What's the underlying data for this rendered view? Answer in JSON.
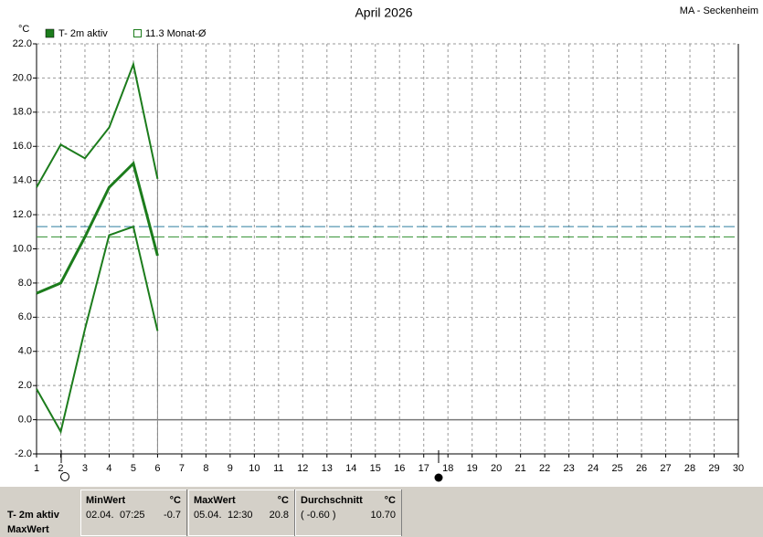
{
  "chart_data": {
    "type": "line",
    "title": "April 2026",
    "station": "MA - Seckenheim",
    "y_unit": "°C",
    "x": [
      1,
      2,
      3,
      4,
      5,
      6
    ],
    "series": [
      {
        "color": "#1c7c1c",
        "width": 2,
        "values": [
          13.6,
          16.1,
          15.3,
          17.1,
          20.8,
          14.1
        ]
      },
      {
        "name": "T- 2m aktiv",
        "color": "#1c7c1c",
        "width": 3,
        "values": [
          7.4,
          8.0,
          10.7,
          13.6,
          15.0,
          9.6
        ]
      },
      {
        "color": "#1c7c1c",
        "width": 2,
        "values": [
          1.8,
          -0.7,
          5.3,
          10.8,
          11.3,
          5.2
        ]
      }
    ],
    "reference_lines": [
      {
        "name": "11.3 Monat-Ø",
        "value": 11.3,
        "color": "#2f7f9f"
      },
      {
        "value": 10.7,
        "color": "#2f8f2f"
      }
    ],
    "xlim": [
      1,
      30
    ],
    "xticks": [
      1,
      2,
      3,
      4,
      5,
      6,
      7,
      8,
      9,
      10,
      11,
      12,
      13,
      14,
      15,
      16,
      17,
      18,
      19,
      20,
      21,
      22,
      23,
      24,
      25,
      26,
      27,
      28,
      29,
      30
    ],
    "ylim": [
      -2,
      22
    ],
    "yticks": [
      {
        "value": -2,
        "label": "-2.0"
      },
      {
        "value": 0,
        "label": "0.0"
      },
      {
        "value": 2,
        "label": "2.0"
      },
      {
        "value": 4,
        "label": "4.0"
      },
      {
        "value": 6,
        "label": "6.0"
      },
      {
        "value": 8,
        "label": "8.0"
      },
      {
        "value": 10,
        "label": "10.0"
      },
      {
        "value": 12,
        "label": "12.0"
      },
      {
        "value": 14,
        "label": "14.0"
      },
      {
        "value": 16,
        "label": "16.0"
      },
      {
        "value": 18,
        "label": "18.0"
      },
      {
        "value": 20,
        "label": "20.0"
      },
      {
        "value": 22,
        "label": "22.0"
      }
    ],
    "current_x": 6,
    "grid": true
  },
  "stats": {
    "row_label": "T- 2m aktiv",
    "row_label2": "MaxWert",
    "columns": [
      {
        "title": "MinWert",
        "unit": "°C",
        "date": "02.04.",
        "time": "07:25",
        "value": "-0.7"
      },
      {
        "title": "MaxWert",
        "unit": "°C",
        "date": "05.04.",
        "time": "12:30",
        "value": "20.8"
      },
      {
        "title": "Durchschnitt",
        "unit": "°C",
        "date": "( -0.60 )",
        "value": "10.70"
      }
    ]
  }
}
